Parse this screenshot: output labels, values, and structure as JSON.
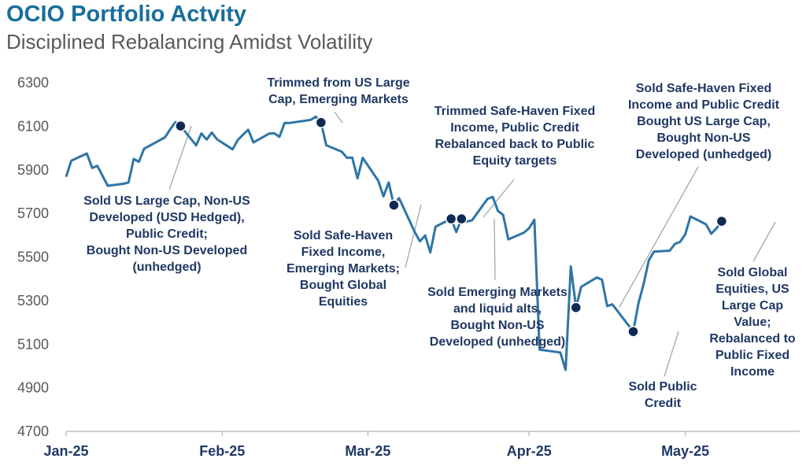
{
  "header": {
    "title": "OCIO Portfolio Actvity",
    "subtitle": "Disciplined Rebalancing Amidst Volatility"
  },
  "colors": {
    "line": "#2e75a6",
    "marker": "#0f2a55",
    "title": "#1a6e9c",
    "annotation": "#1f3864",
    "leader": "#a6a6a6"
  },
  "chart_data": {
    "type": "line",
    "title": "OCIO Portfolio Actvity",
    "subtitle": "Disciplined Rebalancing Amidst Volatility",
    "ylim": [
      4700,
      6300
    ],
    "yticks": [
      4700,
      4900,
      5100,
      5300,
      5500,
      5700,
      5900,
      6100,
      6300
    ],
    "xlim": [
      "2025-01-02",
      "2025-05-23"
    ],
    "xticks": [
      {
        "date": "2025-01-02",
        "label": "Jan-25"
      },
      {
        "date": "2025-02-01",
        "label": "Feb-25"
      },
      {
        "date": "2025-03-01",
        "label": "Mar-25"
      },
      {
        "date": "2025-04-01",
        "label": "Apr-25"
      },
      {
        "date": "2025-05-01",
        "label": "May-25"
      }
    ],
    "grid": false,
    "series": [
      {
        "points": [
          [
            "2025-01-02",
            5868
          ],
          [
            "2025-01-03",
            5942
          ],
          [
            "2025-01-06",
            5975
          ],
          [
            "2025-01-07",
            5909
          ],
          [
            "2025-01-08",
            5918
          ],
          [
            "2025-01-10",
            5827
          ],
          [
            "2025-01-13",
            5836
          ],
          [
            "2025-01-14",
            5842
          ],
          [
            "2025-01-15",
            5950
          ],
          [
            "2025-01-16",
            5937
          ],
          [
            "2025-01-17",
            5997
          ],
          [
            "2025-01-21",
            6049
          ],
          [
            "2025-01-22",
            6086
          ],
          [
            "2025-01-23",
            6119
          ],
          [
            "2025-01-24",
            6101
          ],
          [
            "2025-01-27",
            6012
          ],
          [
            "2025-01-28",
            6067
          ],
          [
            "2025-01-29",
            6039
          ],
          [
            "2025-01-30",
            6071
          ],
          [
            "2025-01-31",
            6040
          ],
          [
            "2025-02-03",
            5994
          ],
          [
            "2025-02-04",
            6037
          ],
          [
            "2025-02-05",
            6061
          ],
          [
            "2025-02-06",
            6084
          ],
          [
            "2025-02-07",
            6026
          ],
          [
            "2025-02-10",
            6066
          ],
          [
            "2025-02-11",
            6068
          ],
          [
            "2025-02-12",
            6051
          ],
          [
            "2025-02-13",
            6115
          ],
          [
            "2025-02-14",
            6115
          ],
          [
            "2025-02-18",
            6129
          ],
          [
            "2025-02-19",
            6144
          ],
          [
            "2025-02-20",
            6117
          ],
          [
            "2025-02-21",
            6013
          ],
          [
            "2025-02-24",
            5983
          ],
          [
            "2025-02-25",
            5955
          ],
          [
            "2025-02-26",
            5956
          ],
          [
            "2025-02-27",
            5861
          ],
          [
            "2025-02-28",
            5955
          ],
          [
            "2025-03-03",
            5850
          ],
          [
            "2025-03-04",
            5778
          ],
          [
            "2025-03-05",
            5842
          ],
          [
            "2025-03-06",
            5738
          ],
          [
            "2025-03-07",
            5770
          ],
          [
            "2025-03-10",
            5615
          ],
          [
            "2025-03-11",
            5572
          ],
          [
            "2025-03-12",
            5599
          ],
          [
            "2025-03-13",
            5521
          ],
          [
            "2025-03-14",
            5639
          ],
          [
            "2025-03-17",
            5675
          ],
          [
            "2025-03-18",
            5615
          ],
          [
            "2025-03-19",
            5675
          ],
          [
            "2025-03-20",
            5663
          ],
          [
            "2025-03-21",
            5668
          ],
          [
            "2025-03-24",
            5767
          ],
          [
            "2025-03-25",
            5776
          ],
          [
            "2025-03-26",
            5712
          ],
          [
            "2025-03-27",
            5693
          ],
          [
            "2025-03-28",
            5581
          ],
          [
            "2025-03-31",
            5612
          ],
          [
            "2025-04-01",
            5633
          ],
          [
            "2025-04-02",
            5671
          ],
          [
            "2025-04-03",
            5075
          ],
          [
            "2025-04-07",
            5062
          ],
          [
            "2025-04-08",
            4982
          ],
          [
            "2025-04-09",
            5457
          ],
          [
            "2025-04-10",
            5268
          ],
          [
            "2025-04-11",
            5363
          ],
          [
            "2025-04-14",
            5406
          ],
          [
            "2025-04-15",
            5396
          ],
          [
            "2025-04-16",
            5275
          ],
          [
            "2025-04-17",
            5283
          ],
          [
            "2025-04-21",
            5158
          ],
          [
            "2025-04-22",
            5287
          ],
          [
            "2025-04-23",
            5376
          ],
          [
            "2025-04-24",
            5485
          ],
          [
            "2025-04-25",
            5525
          ],
          [
            "2025-04-28",
            5529
          ],
          [
            "2025-04-29",
            5560
          ],
          [
            "2025-04-30",
            5569
          ],
          [
            "2025-05-01",
            5604
          ],
          [
            "2025-05-02",
            5686
          ],
          [
            "2025-05-05",
            5650
          ],
          [
            "2025-05-06",
            5607
          ],
          [
            "2025-05-07",
            5631
          ],
          [
            "2025-05-08",
            5664
          ]
        ]
      }
    ],
    "rebalance_points": [
      {
        "date": "2025-01-24",
        "value": 6101
      },
      {
        "date": "2025-02-20",
        "value": 6117
      },
      {
        "date": "2025-03-06",
        "value": 5738
      },
      {
        "date": "2025-03-17",
        "value": 5675
      },
      {
        "date": "2025-03-19",
        "value": 5675
      },
      {
        "date": "2025-04-10",
        "value": 5268
      },
      {
        "date": "2025-04-21",
        "value": 5158
      },
      {
        "date": "2025-05-08",
        "value": 5664
      }
    ],
    "annotations": [
      {
        "lines": [
          "Sold US Large Cap, Non-US",
          "Developed (USD Hedged),",
          "Public Credit;",
          "Bought Non-US Developed",
          "(unhedged)"
        ]
      },
      {
        "lines": [
          "Trimmed from US Large",
          "Cap, Emerging Markets"
        ]
      },
      {
        "lines": [
          "Sold Safe-Haven",
          "Fixed Income,",
          "Emerging Markets;",
          "Bought Global",
          "Equities"
        ]
      },
      {
        "lines": [
          "Trimmed Safe-Haven Fixed",
          "Income, Public Credit",
          "Rebalanced back to Public",
          "Equity targets"
        ]
      },
      {
        "lines": [
          "Sold Emerging Markets",
          "and liquid alts,",
          "Bought Non-US",
          "Developed (unhedged)"
        ]
      },
      {
        "lines": [
          "Sold Safe-Haven Fixed",
          "Income and Public Credit",
          "Bought US Large Cap,",
          "Bought Non-US",
          "Developed (unhedged)"
        ]
      },
      {
        "lines": [
          "Sold Public",
          "Credit"
        ]
      },
      {
        "lines": [
          "Sold Global",
          "Equities, US",
          "Large Cap",
          "Value;",
          "Rebalanced to",
          "Public Fixed",
          "Income"
        ]
      }
    ]
  }
}
